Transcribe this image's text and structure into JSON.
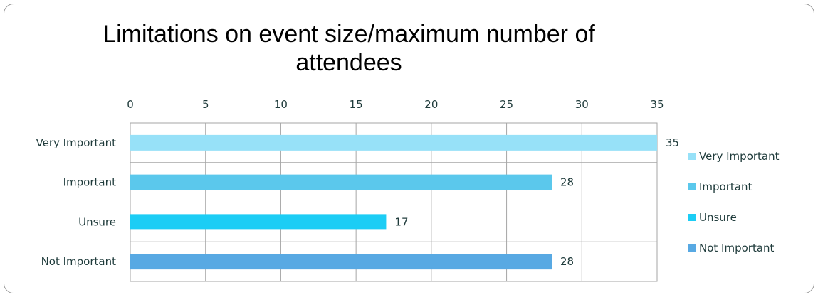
{
  "chart_data": {
    "type": "bar",
    "orientation": "horizontal",
    "title": "Limitations on event size/maximum number of attendees",
    "categories": [
      "Very Important",
      "Important",
      "Unsure",
      "Not Important"
    ],
    "values": [
      35,
      28,
      17,
      28
    ],
    "colors": [
      "#97e1f8",
      "#5bc8ec",
      "#1ccdf5",
      "#58a9e3"
    ],
    "xlim": [
      0,
      35
    ],
    "xticks": [
      0,
      5,
      10,
      15,
      20,
      25,
      30,
      35
    ],
    "x_axis_position": "top",
    "grid": true,
    "legend_position": "right",
    "legend": [
      "Very Important",
      "Important",
      "Unsure",
      "Not Important"
    ]
  }
}
